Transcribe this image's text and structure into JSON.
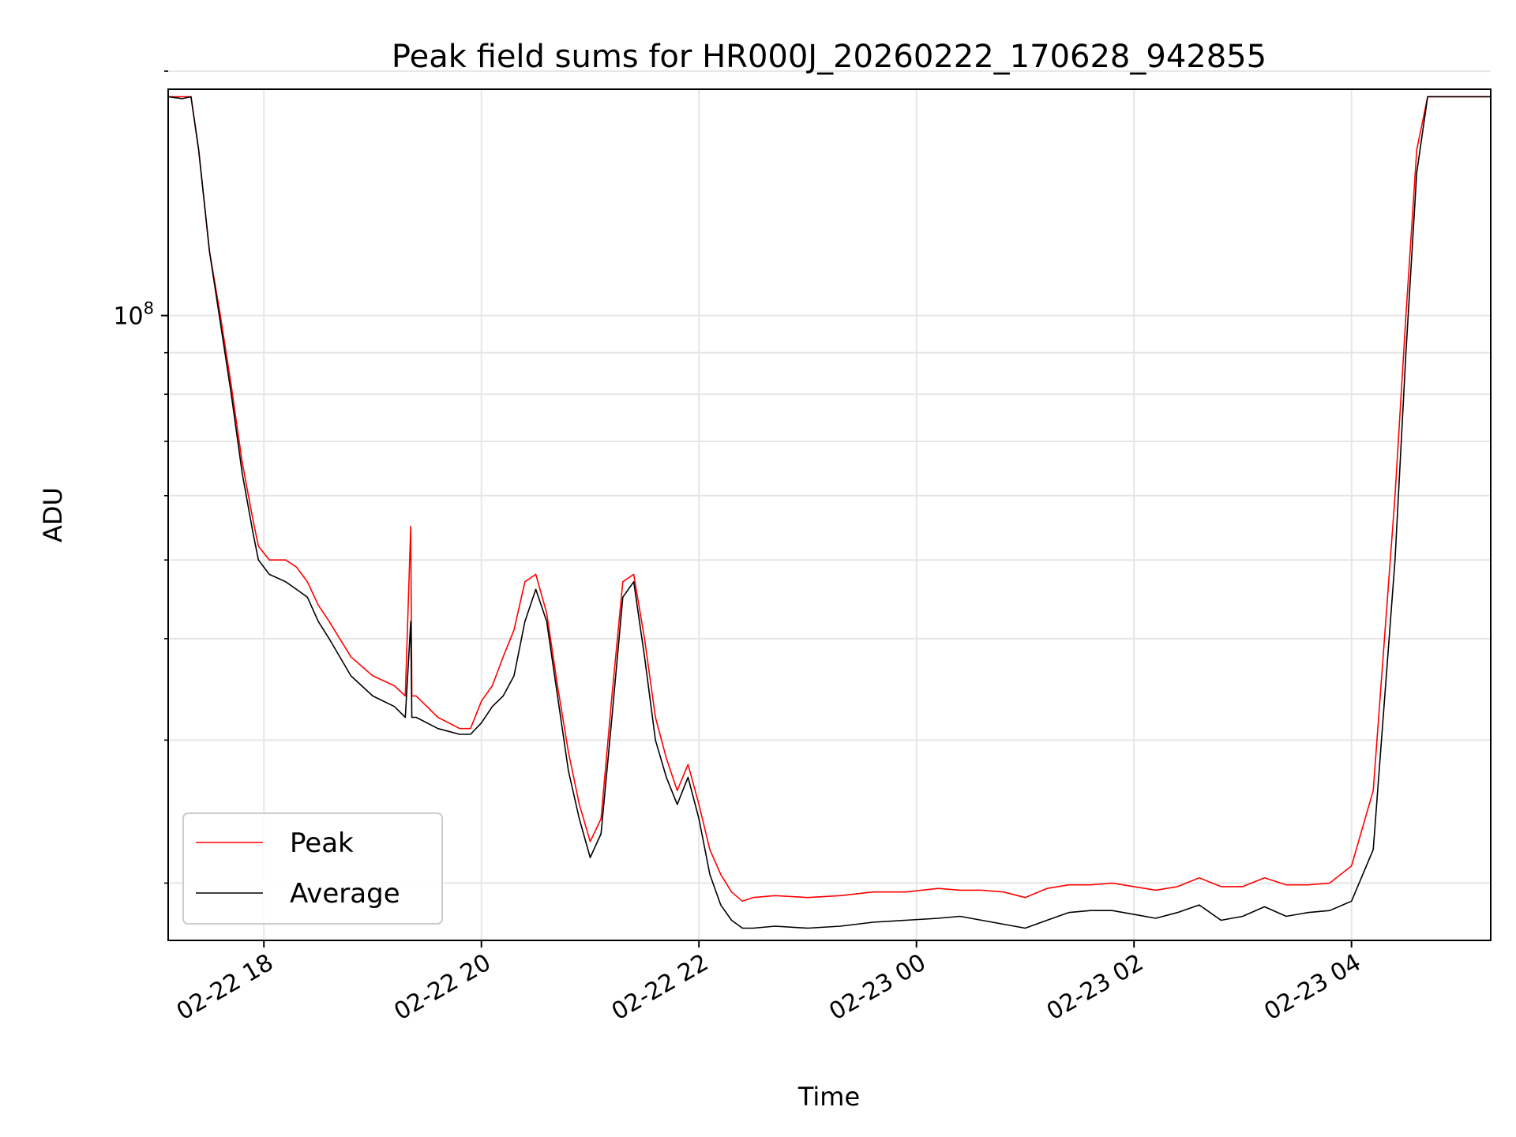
{
  "chart_data": {
    "type": "line",
    "title": "Peak field sums for HR000J_20260222_170628_942855",
    "xlabel": "Time",
    "ylabel": "ADU",
    "yscale": "log",
    "ylim": [
      17000000,
      190000000
    ],
    "xlim": [
      17.12,
      29.28
    ],
    "grid": true,
    "xticks": [
      {
        "value": 18,
        "label": "02-22 18"
      },
      {
        "value": 20,
        "label": "02-22 20"
      },
      {
        "value": 22,
        "label": "02-22 22"
      },
      {
        "value": 24,
        "label": "02-23 00"
      },
      {
        "value": 26,
        "label": "02-23 02"
      },
      {
        "value": 28,
        "label": "02-23 04"
      }
    ],
    "yticks_major": [
      {
        "value": 100000000,
        "base": "10",
        "exp": "8"
      }
    ],
    "yticks_minor": [
      20000000,
      30000000,
      40000000,
      50000000,
      60000000,
      70000000,
      80000000,
      90000000,
      200000000
    ],
    "legend": {
      "placement": "lower-left",
      "entries": [
        "Peak",
        "Average"
      ]
    },
    "series": [
      {
        "name": "Peak",
        "color": "#ff0000",
        "x": [
          17.12,
          17.25,
          17.33,
          17.4,
          17.5,
          17.6,
          17.7,
          17.8,
          17.9,
          17.95,
          18.05,
          18.2,
          18.3,
          18.4,
          18.5,
          18.6,
          18.8,
          19.0,
          19.2,
          19.3,
          19.35,
          19.36,
          19.4,
          19.6,
          19.8,
          19.9,
          20.0,
          20.1,
          20.2,
          20.3,
          20.4,
          20.5,
          20.6,
          20.7,
          20.8,
          20.9,
          21.0,
          21.1,
          21.2,
          21.3,
          21.4,
          21.5,
          21.6,
          21.7,
          21.8,
          21.9,
          22.0,
          22.1,
          22.2,
          22.3,
          22.4,
          22.5,
          22.7,
          23.0,
          23.3,
          23.6,
          23.9,
          24.2,
          24.4,
          24.6,
          24.8,
          25.0,
          25.2,
          25.4,
          25.6,
          25.8,
          26.0,
          26.2,
          26.4,
          26.6,
          26.8,
          27.0,
          27.2,
          27.4,
          27.6,
          27.8,
          28.0,
          28.2,
          28.4,
          28.5,
          28.6,
          28.7,
          28.8,
          28.9,
          29.0,
          29.1,
          29.2,
          29.28
        ],
        "values": [
          186000000,
          186000000,
          186000000,
          160000000,
          120000000,
          100000000,
          82000000,
          66000000,
          56000000,
          52000000,
          50000000,
          50000000,
          49000000,
          47000000,
          44000000,
          42000000,
          38000000,
          36000000,
          35000000,
          34000000,
          55000000,
          34000000,
          34000000,
          32000000,
          31000000,
          31000000,
          33500000,
          35000000,
          38000000,
          41000000,
          47000000,
          48000000,
          43000000,
          35000000,
          29000000,
          25000000,
          22500000,
          24000000,
          34000000,
          47000000,
          48000000,
          40000000,
          32000000,
          28500000,
          26000000,
          28000000,
          25000000,
          22000000,
          20500000,
          19500000,
          19000000,
          19200000,
          19300000,
          19200000,
          19300000,
          19500000,
          19500000,
          19700000,
          19600000,
          19600000,
          19500000,
          19200000,
          19700000,
          19900000,
          19900000,
          20000000,
          19800000,
          19600000,
          19800000,
          20300000,
          19800000,
          19800000,
          20300000,
          19900000,
          19900000,
          20000000,
          21000000,
          26000000,
          60000000,
          100000000,
          160000000,
          186000000,
          186000000,
          186000000,
          186000000,
          186000000,
          186000000,
          186000000
        ]
      },
      {
        "name": "Average",
        "color": "#000000",
        "x": [
          17.12,
          17.25,
          17.33,
          17.4,
          17.5,
          17.6,
          17.7,
          17.8,
          17.9,
          17.95,
          18.05,
          18.2,
          18.3,
          18.4,
          18.5,
          18.6,
          18.8,
          19.0,
          19.2,
          19.3,
          19.35,
          19.36,
          19.4,
          19.6,
          19.8,
          19.9,
          20.0,
          20.1,
          20.2,
          20.3,
          20.4,
          20.5,
          20.6,
          20.7,
          20.8,
          20.9,
          21.0,
          21.1,
          21.2,
          21.3,
          21.4,
          21.5,
          21.6,
          21.7,
          21.8,
          21.9,
          22.0,
          22.1,
          22.2,
          22.3,
          22.4,
          22.5,
          22.7,
          23.0,
          23.3,
          23.6,
          23.9,
          24.2,
          24.4,
          24.6,
          24.8,
          25.0,
          25.2,
          25.4,
          25.6,
          25.8,
          26.0,
          26.2,
          26.4,
          26.6,
          26.8,
          27.0,
          27.2,
          27.4,
          27.6,
          27.8,
          28.0,
          28.2,
          28.4,
          28.5,
          28.6,
          28.7,
          28.8,
          28.9,
          29.0,
          29.1,
          29.2,
          29.28
        ],
        "values": [
          186000000,
          185000000,
          186000000,
          160000000,
          120000000,
          98000000,
          80000000,
          64000000,
          54000000,
          50000000,
          48000000,
          47000000,
          46000000,
          45000000,
          42000000,
          40000000,
          36000000,
          34000000,
          33000000,
          32000000,
          42000000,
          32000000,
          32000000,
          31000000,
          30500000,
          30500000,
          31500000,
          33000000,
          34000000,
          36000000,
          42000000,
          46000000,
          42000000,
          34000000,
          27500000,
          24000000,
          21500000,
          23000000,
          32000000,
          45000000,
          47000000,
          38000000,
          30000000,
          27000000,
          25000000,
          27000000,
          24000000,
          20500000,
          18800000,
          18000000,
          17600000,
          17600000,
          17700000,
          17600000,
          17700000,
          17900000,
          18000000,
          18100000,
          18200000,
          18000000,
          17800000,
          17600000,
          18000000,
          18400000,
          18500000,
          18500000,
          18300000,
          18100000,
          18400000,
          18800000,
          18000000,
          18200000,
          18700000,
          18200000,
          18400000,
          18500000,
          19000000,
          22000000,
          50000000,
          90000000,
          150000000,
          186000000,
          186000000,
          186000000,
          186000000,
          186000000,
          186000000,
          186000000
        ]
      }
    ]
  }
}
